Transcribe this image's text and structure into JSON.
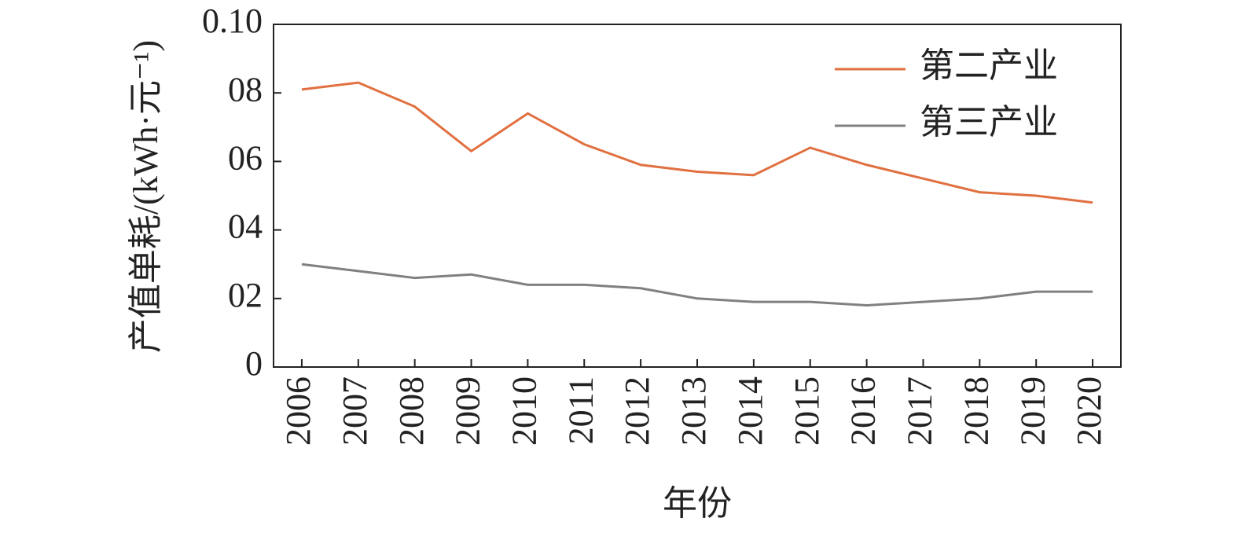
{
  "chart_data": {
    "type": "line",
    "x_label": "年份",
    "y_label": "产值单耗/(kWh·元⁻¹)",
    "categories": [
      "2006",
      "2007",
      "2008",
      "2009",
      "2010",
      "2011",
      "2012",
      "2013",
      "2014",
      "2015",
      "2016",
      "2017",
      "2018",
      "2019",
      "2020"
    ],
    "series": [
      {
        "name": "第二产业",
        "color": "#e07040",
        "values": [
          0.081,
          0.083,
          0.076,
          0.063,
          0.074,
          0.065,
          0.059,
          0.057,
          0.056,
          0.064,
          0.059,
          0.055,
          0.051,
          0.05,
          0.048
        ]
      },
      {
        "name": "第三产业",
        "color": "#808080",
        "values": [
          0.03,
          0.028,
          0.026,
          0.027,
          0.024,
          0.024,
          0.023,
          0.02,
          0.019,
          0.019,
          0.018,
          0.019,
          0.02,
          0.022,
          0.022
        ]
      }
    ],
    "ylim": [
      0,
      0.1
    ],
    "yticks": [
      0,
      {
        "value": 0.02,
        "label": "02"
      },
      {
        "value": 0.04,
        "label": "04"
      },
      {
        "value": 0.06,
        "label": "06"
      },
      {
        "value": 0.08,
        "label": "08"
      },
      {
        "value": 0.1,
        "label": "0.10"
      }
    ],
    "legend": "upper right",
    "grid": false
  }
}
